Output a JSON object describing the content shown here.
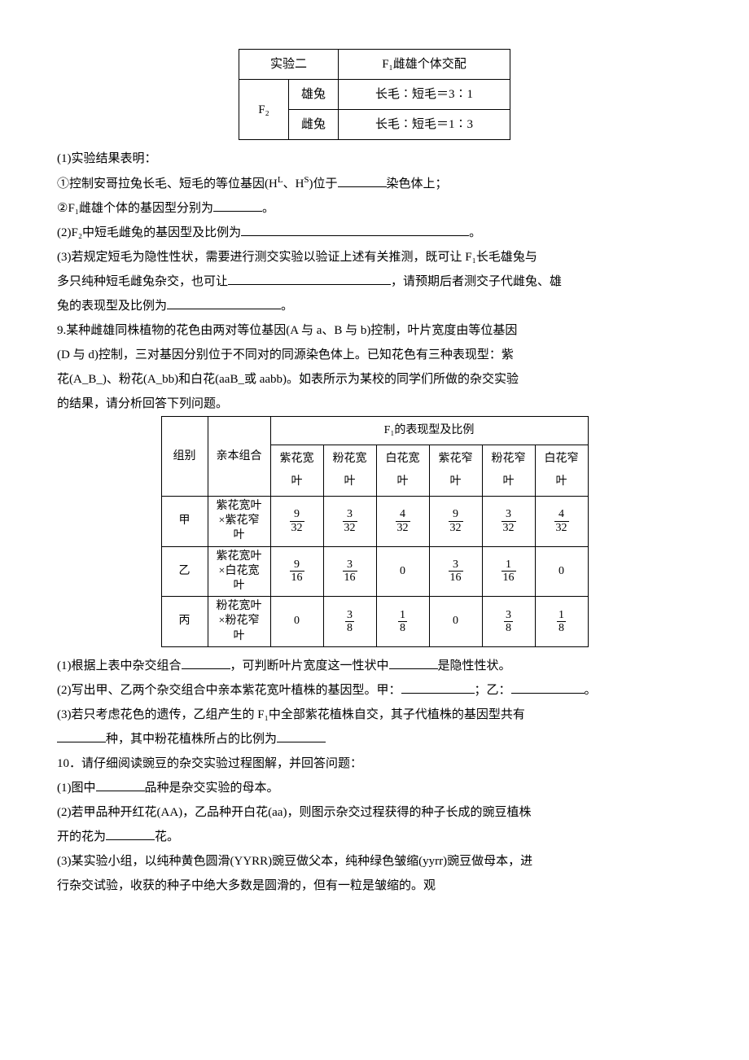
{
  "table1": {
    "r1c1": "实验二",
    "r1c2": "F₁雌雄个体交配",
    "r2c1": "F₂",
    "r2c2": "雄兔",
    "r2c3": "长毛∶短毛＝3∶1",
    "r3c2": "雌兔",
    "r3c3": "长毛∶短毛＝1∶3"
  },
  "q8": {
    "l1": "(1)实验结果表明：",
    "l2a": "①控制安哥拉兔长毛、短毛的等位基因(H",
    "l2b": "、H",
    "l2c": ")位于",
    "l2d": "染色体上；",
    "l3a": "②F₁雌雄个体的基因型分别为",
    "l3b": "。",
    "l4a": "(2)F₂中短毛雌兔的基因型及比例为",
    "l4b": "。",
    "l5a": "(3)若规定短毛为隐性性状，需要进行测交实验以验证上述有关推测，既可让 F₁长毛雄兔与",
    "l6a": "多只纯种短毛雌兔杂交，也可让",
    "l6b": "，请预期后者测交子代雌兔、雄",
    "l7a": "兔的表现型及比例为",
    "l7b": "。"
  },
  "q9": {
    "intro1": "9.某种雌雄同株植物的花色由两对等位基因(A 与 a、B 与 b)控制，叶片宽度由等位基因",
    "intro2": "(D 与 d)控制，三对基因分别位于不同对的同源染色体上。已知花色有三种表现型：紫",
    "intro3": "花(A_B_)、粉花(A_bb)和白花(aaB_或 aabb)。如表所示为某校的同学们所做的杂交实验",
    "intro4": "的结果，请分析回答下列问题。",
    "l1a": "(1)根据上表中杂交组合",
    "l1b": "，可判断叶片宽度这一性状中",
    "l1c": "是隐性性状。",
    "l2a": "(2)写出甲、乙两个杂交组合中亲本紫花宽叶植株的基因型。甲：",
    "l2b": "；乙：",
    "l2c": "。",
    "l3a": "(3)若只考虑花色的遗传，乙组产生的 F₁中全部紫花植株自交，其子代植株的基因型共有",
    "l4a": "种，其中粉花植株所占的比例为"
  },
  "table2": {
    "h1": "组别",
    "h2": "亲本组合",
    "h3": "F₁的表现型及比例",
    "c1": "紫花宽叶",
    "c2": "粉花宽叶",
    "c3": "白花宽叶",
    "c4": "紫花窄叶",
    "c5": "粉花窄叶",
    "c6": "白花窄叶",
    "rows": [
      {
        "g": "甲",
        "p": "紫花宽叶×紫花窄叶",
        "v": [
          [
            "9",
            "32"
          ],
          [
            "3",
            "32"
          ],
          [
            "4",
            "32"
          ],
          [
            "9",
            "32"
          ],
          [
            "3",
            "32"
          ],
          [
            "4",
            "32"
          ]
        ]
      },
      {
        "g": "乙",
        "p": "紫花宽叶×白花宽叶",
        "v": [
          [
            "9",
            "16"
          ],
          [
            "3",
            "16"
          ],
          "0",
          [
            "3",
            "16"
          ],
          [
            "1",
            "16"
          ],
          "0"
        ]
      },
      {
        "g": "丙",
        "p": "粉花宽叶×粉花窄叶",
        "v": [
          "0",
          [
            "3",
            "8"
          ],
          [
            "1",
            "8"
          ],
          "0",
          [
            "3",
            "8"
          ],
          [
            "1",
            "8"
          ]
        ]
      }
    ]
  },
  "q10": {
    "l0": "10．请仔细阅读豌豆的杂交实验过程图解，并回答问题：",
    "l1a": "(1)图中",
    "l1b": "品种是杂交实验的母本。",
    "l2a": "(2)若甲品种开红花(AA)，乙品种开白花(aa)，则图示杂交过程获得的种子长成的豌豆植株",
    "l3a": "开的花为",
    "l3b": "花。",
    "l4a": "(3)某实验小组，以纯种黄色圆滑(YYRR)豌豆做父本，纯种绿色皱缩(yyrr)豌豆做母本，进",
    "l5a": "行杂交试验，收获的种子中绝大多数是圆滑的，但有一粒是皱缩的。观"
  }
}
